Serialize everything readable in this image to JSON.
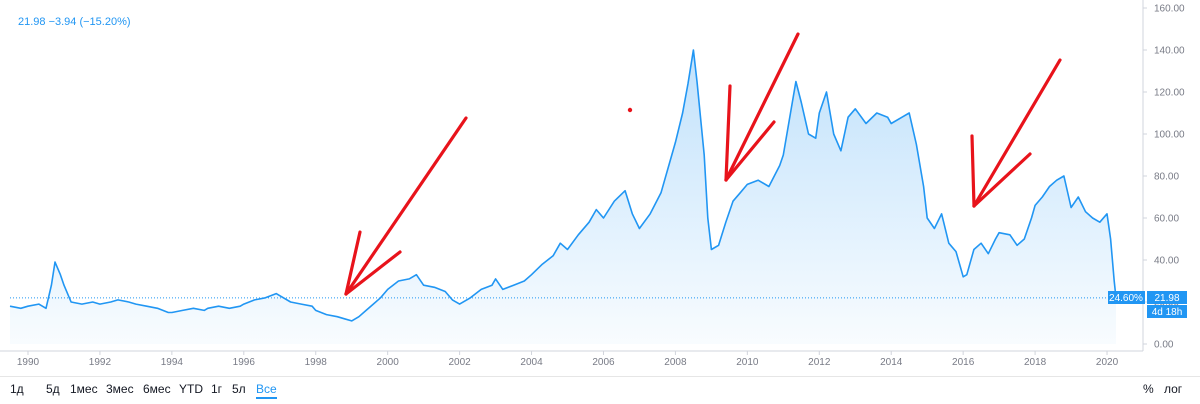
{
  "header": {
    "legend": "21.98 −3.94 (−15.20%)"
  },
  "labels": {
    "percent": "24.60%",
    "price": "21.98",
    "countdown": "4d 18h"
  },
  "toolbar": {
    "timeframes": [
      "1д",
      "5д",
      "1мес",
      "3мес",
      "6мес",
      "YTD",
      "1г",
      "5л",
      "Все"
    ],
    "active": "Все",
    "percent_label": "%",
    "log_label": "лог"
  },
  "colors": {
    "line": "#2196f3",
    "arrow": "#e8131b",
    "text": "#131722",
    "axis": "#787b86"
  },
  "chart_data": {
    "type": "area",
    "x_ticks": [
      "1990",
      "1992",
      "1994",
      "1996",
      "1998",
      "2000",
      "2002",
      "2004",
      "2006",
      "2008",
      "2010",
      "2012",
      "2014",
      "2016",
      "2018",
      "2020"
    ],
    "y_ticks": [
      "0.00",
      "20.00",
      "40.00",
      "60.00",
      "80.00",
      "100.00",
      "120.00",
      "140.00",
      "160.00"
    ],
    "xlim": [
      1989.5,
      2021.0
    ],
    "ylim": [
      0,
      160
    ],
    "last_value": 21.98,
    "series": [
      {
        "values": [
          [
            1989.5,
            18
          ],
          [
            1989.8,
            17
          ],
          [
            1990.0,
            18
          ],
          [
            1990.3,
            19
          ],
          [
            1990.5,
            17
          ],
          [
            1990.65,
            28
          ],
          [
            1990.75,
            39
          ],
          [
            1990.9,
            33
          ],
          [
            1991.0,
            28
          ],
          [
            1991.2,
            20
          ],
          [
            1991.5,
            19
          ],
          [
            1991.8,
            20
          ],
          [
            1992.0,
            19
          ],
          [
            1992.3,
            20
          ],
          [
            1992.5,
            21
          ],
          [
            1992.8,
            20
          ],
          [
            1993.0,
            19
          ],
          [
            1993.3,
            18
          ],
          [
            1993.6,
            17
          ],
          [
            1993.9,
            15
          ],
          [
            1994.0,
            15
          ],
          [
            1994.3,
            16
          ],
          [
            1994.6,
            17
          ],
          [
            1994.9,
            16
          ],
          [
            1995.0,
            17
          ],
          [
            1995.3,
            18
          ],
          [
            1995.6,
            17
          ],
          [
            1995.9,
            18
          ],
          [
            1996.0,
            19
          ],
          [
            1996.3,
            21
          ],
          [
            1996.6,
            22
          ],
          [
            1996.9,
            24
          ],
          [
            1997.0,
            23
          ],
          [
            1997.3,
            20
          ],
          [
            1997.6,
            19
          ],
          [
            1997.9,
            18
          ],
          [
            1998.0,
            16
          ],
          [
            1998.3,
            14
          ],
          [
            1998.6,
            13
          ],
          [
            1998.8,
            12
          ],
          [
            1999.0,
            11
          ],
          [
            1999.2,
            13
          ],
          [
            1999.4,
            16
          ],
          [
            1999.6,
            19
          ],
          [
            1999.8,
            22
          ],
          [
            2000.0,
            26
          ],
          [
            2000.3,
            30
          ],
          [
            2000.6,
            31
          ],
          [
            2000.8,
            33
          ],
          [
            2001.0,
            28
          ],
          [
            2001.3,
            27
          ],
          [
            2001.6,
            25
          ],
          [
            2001.8,
            21
          ],
          [
            2002.0,
            19
          ],
          [
            2002.3,
            22
          ],
          [
            2002.6,
            26
          ],
          [
            2002.9,
            28
          ],
          [
            2003.0,
            31
          ],
          [
            2003.2,
            26
          ],
          [
            2003.5,
            28
          ],
          [
            2003.8,
            30
          ],
          [
            2004.0,
            33
          ],
          [
            2004.3,
            38
          ],
          [
            2004.6,
            42
          ],
          [
            2004.8,
            48
          ],
          [
            2005.0,
            45
          ],
          [
            2005.3,
            52
          ],
          [
            2005.6,
            58
          ],
          [
            2005.8,
            64
          ],
          [
            2006.0,
            60
          ],
          [
            2006.3,
            68
          ],
          [
            2006.6,
            73
          ],
          [
            2006.8,
            62
          ],
          [
            2007.0,
            55
          ],
          [
            2007.3,
            62
          ],
          [
            2007.6,
            72
          ],
          [
            2007.9,
            90
          ],
          [
            2008.0,
            96
          ],
          [
            2008.2,
            110
          ],
          [
            2008.35,
            124
          ],
          [
            2008.5,
            140
          ],
          [
            2008.6,
            125
          ],
          [
            2008.8,
            90
          ],
          [
            2008.9,
            60
          ],
          [
            2009.0,
            45
          ],
          [
            2009.2,
            47
          ],
          [
            2009.4,
            58
          ],
          [
            2009.6,
            68
          ],
          [
            2009.8,
            72
          ],
          [
            2010.0,
            76
          ],
          [
            2010.3,
            78
          ],
          [
            2010.6,
            75
          ],
          [
            2010.9,
            85
          ],
          [
            2011.0,
            90
          ],
          [
            2011.2,
            110
          ],
          [
            2011.35,
            125
          ],
          [
            2011.5,
            115
          ],
          [
            2011.7,
            100
          ],
          [
            2011.9,
            98
          ],
          [
            2012.0,
            110
          ],
          [
            2012.2,
            120
          ],
          [
            2012.4,
            100
          ],
          [
            2012.6,
            92
          ],
          [
            2012.8,
            108
          ],
          [
            2013.0,
            112
          ],
          [
            2013.3,
            105
          ],
          [
            2013.6,
            110
          ],
          [
            2013.9,
            108
          ],
          [
            2014.0,
            105
          ],
          [
            2014.3,
            108
          ],
          [
            2014.5,
            110
          ],
          [
            2014.7,
            95
          ],
          [
            2014.9,
            75
          ],
          [
            2015.0,
            60
          ],
          [
            2015.2,
            55
          ],
          [
            2015.4,
            62
          ],
          [
            2015.6,
            48
          ],
          [
            2015.8,
            44
          ],
          [
            2016.0,
            32
          ],
          [
            2016.1,
            33
          ],
          [
            2016.3,
            45
          ],
          [
            2016.5,
            48
          ],
          [
            2016.7,
            43
          ],
          [
            2016.9,
            50
          ],
          [
            2017.0,
            53
          ],
          [
            2017.3,
            52
          ],
          [
            2017.5,
            47
          ],
          [
            2017.7,
            50
          ],
          [
            2017.9,
            60
          ],
          [
            2018.0,
            66
          ],
          [
            2018.2,
            70
          ],
          [
            2018.4,
            75
          ],
          [
            2018.6,
            78
          ],
          [
            2018.8,
            80
          ],
          [
            2019.0,
            65
          ],
          [
            2019.2,
            70
          ],
          [
            2019.4,
            63
          ],
          [
            2019.6,
            60
          ],
          [
            2019.8,
            58
          ],
          [
            2020.0,
            62
          ],
          [
            2020.1,
            50
          ],
          [
            2020.2,
            30
          ],
          [
            2020.25,
            21.98
          ]
        ]
      }
    ]
  }
}
